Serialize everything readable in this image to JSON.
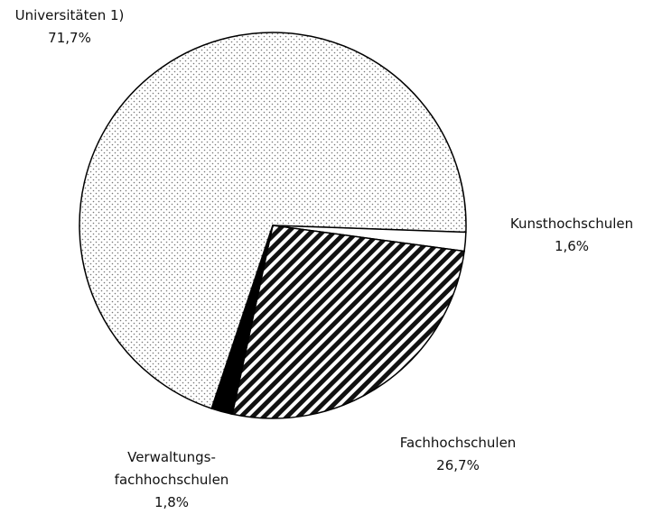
{
  "chart_data": {
    "type": "pie",
    "categories": [
      "Universitäten 1)",
      "Kunsthochschulen",
      "Fachhochschulen",
      "Verwaltungs-\nfachhochschulen"
    ],
    "values": [
      71.7,
      1.6,
      26.7,
      1.8
    ],
    "value_labels": [
      "71,7%",
      "1,6%",
      "26,7%",
      "1,8%"
    ],
    "fills": [
      "dots",
      "white",
      "stripes",
      "black"
    ]
  }
}
